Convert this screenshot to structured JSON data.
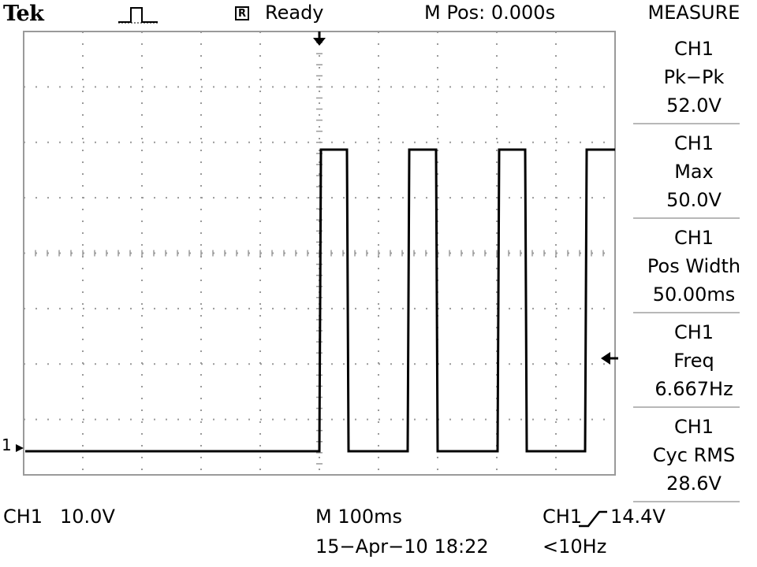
{
  "header": {
    "brand": "Tek",
    "acquire_icon": "pulse-icon",
    "run_state_badge": "R",
    "status": "Ready",
    "main_position": "M Pos: 0.000s"
  },
  "measure": {
    "title": "MEASURE",
    "items": [
      {
        "channel": "CH1",
        "type": "Pk−Pk",
        "value": "52.0V"
      },
      {
        "channel": "CH1",
        "type": "Max",
        "value": "50.0V"
      },
      {
        "channel": "CH1",
        "type": "Pos Width",
        "value": "50.00ms"
      },
      {
        "channel": "CH1",
        "type": "Freq",
        "value": "6.667Hz"
      },
      {
        "channel": "CH1",
        "type": "Cyc RMS",
        "value": "28.6V"
      }
    ]
  },
  "footer": {
    "ch1_label": "CH1",
    "ch1_scale": "10.0V",
    "timebase": "M 100ms",
    "datetime": "15−Apr−10 18:22",
    "trigger_channel": "CH1",
    "trigger_slope_icon": "rising-edge-icon",
    "trigger_level": "14.4V",
    "trigger_freq": "<10Hz"
  },
  "markers": {
    "channel1_ground_marker": "1",
    "trigger_position_icon": "down-arrow-icon",
    "trigger_level_icon": "left-arrow-icon"
  },
  "colors": {
    "trace": "#000000",
    "grid": "#9a9a9a",
    "background": "#ffffff"
  }
}
